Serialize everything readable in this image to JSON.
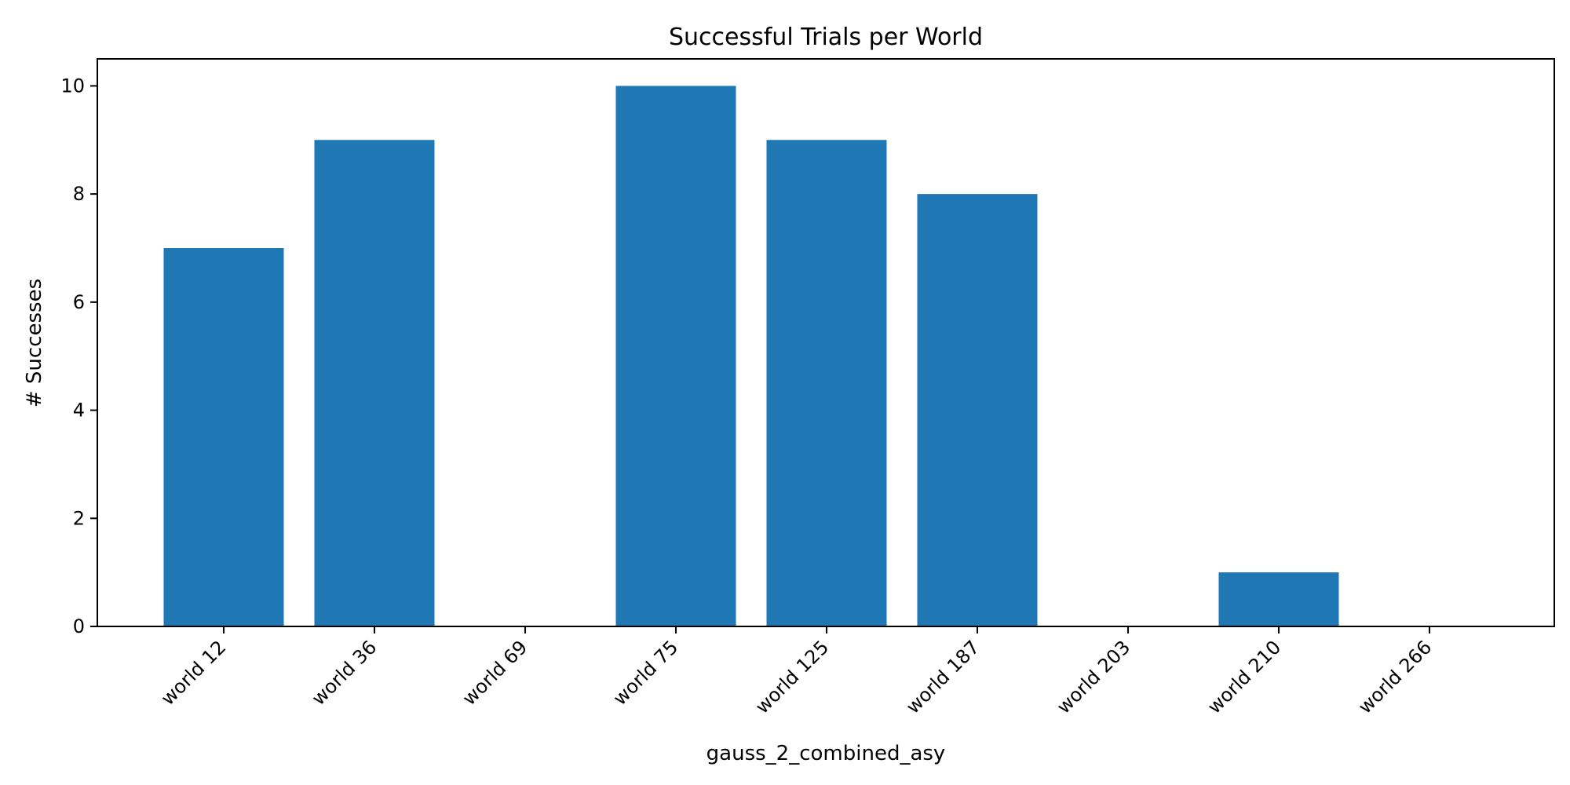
{
  "chart_data": {
    "type": "bar",
    "title": "Successful Trials per World",
    "xlabel": "gauss_2_combined_asy",
    "ylabel": "# Successes",
    "categories": [
      "world 12",
      "world 36",
      "world 69",
      "world 75",
      "world 125",
      "world 187",
      "world 203",
      "world 210",
      "world 266"
    ],
    "values": [
      7,
      9,
      0,
      10,
      9,
      8,
      0,
      1,
      0
    ],
    "ylim": [
      0,
      10.5
    ],
    "yticks": [
      0,
      2,
      4,
      6,
      8,
      10
    ],
    "grid": false,
    "legend": "none",
    "bar_color": "#1f77b4"
  }
}
